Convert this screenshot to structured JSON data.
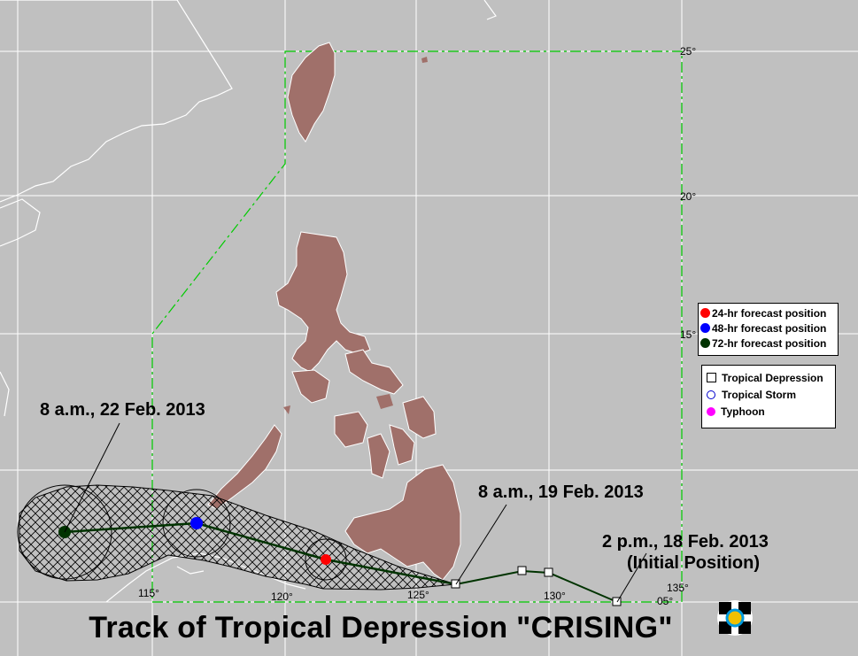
{
  "title": "Track of Tropical Depression \"CRISING\"",
  "grid": {
    "lat_labels": [
      "25°",
      "20°",
      "15°",
      "05°"
    ],
    "lon_labels": [
      "115°",
      "120°",
      "125°",
      "130°",
      "135°"
    ],
    "grid_color": "#ffffff",
    "par_color": "#00cc00"
  },
  "annotations": {
    "initial": "2 p.m., 18 Feb. 2013",
    "initial_sub": "(Initial Position)",
    "feb19": "8 a.m., 19 Feb. 2013",
    "feb22": "8 a.m., 22 Feb. 2013"
  },
  "legend_forecast": [
    {
      "label": "24-hr forecast position",
      "color": "#ff0000"
    },
    {
      "label": "48-hr forecast position",
      "color": "#0000ff"
    },
    {
      "label": "72-hr forecast position",
      "color": "#003300"
    }
  ],
  "legend_category": [
    {
      "label": "Tropical Depression",
      "symbol": "open-square"
    },
    {
      "label": "Tropical Storm",
      "symbol": "open-circle"
    },
    {
      "label": "Typhoon",
      "symbol": "magenta-circle"
    }
  ],
  "track": {
    "observed_symbol": "open-square",
    "forecast_colors": [
      "#ff0000",
      "#0000ff",
      "#003300"
    ],
    "track_color": "#003300",
    "land_color": "#a0706a"
  }
}
